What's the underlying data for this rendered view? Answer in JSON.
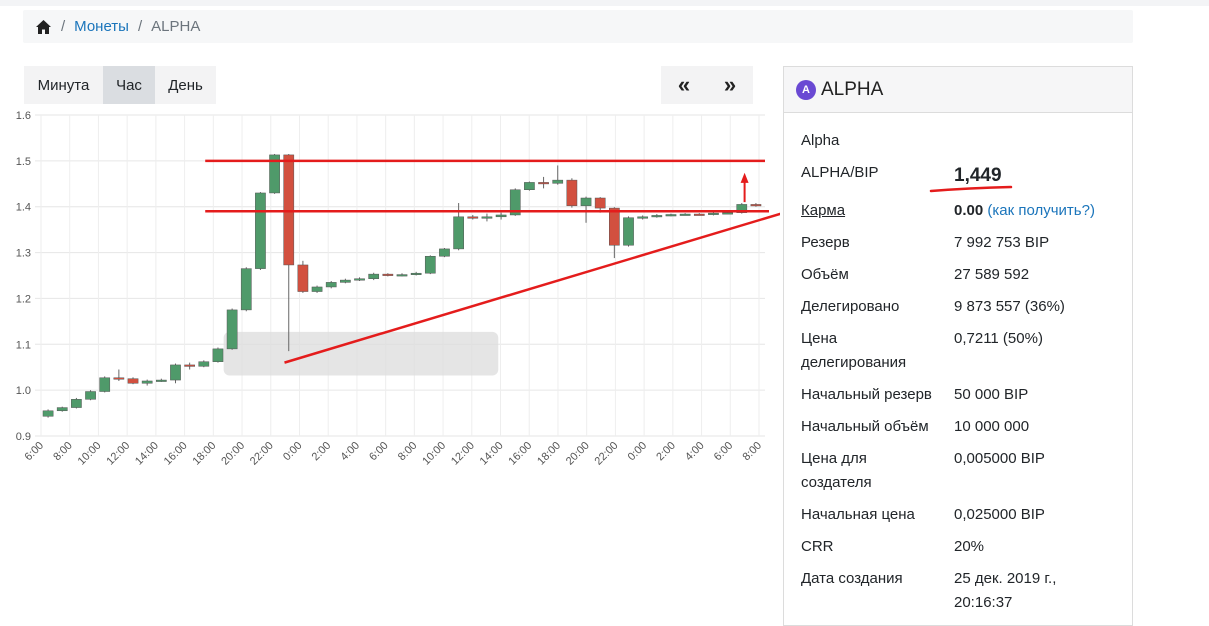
{
  "breadcrumb": {
    "home_icon": "home-icon",
    "coins_label": "Монеты",
    "current": "ALPHA"
  },
  "timeframe": {
    "items": [
      "Минута",
      "Час",
      "День"
    ],
    "active": "Час"
  },
  "pager": {
    "prev": "«",
    "next": "»"
  },
  "panel": {
    "ticker": "ALPHA",
    "logo_letter": "A",
    "name": "Alpha",
    "pair_label": "ALPHA/BIP",
    "pair_value": "1,449",
    "karma_label": "Карма",
    "karma_value": "0.00",
    "karma_link": "(как получить?)",
    "reserve_label": "Резерв",
    "reserve_value": "7 992 753 BIP",
    "volume_label": "Объём",
    "volume_value": "27 589 592",
    "delegated_label": "Делегировано",
    "delegated_value": "9 873 557 (36%)",
    "deleg_price_label_1": "Цена",
    "deleg_price_label_2": "делегирования",
    "deleg_price_value": "0,7211 (50%)",
    "init_reserve_label": "Начальный резерв",
    "init_reserve_value": "50 000 BIP",
    "init_volume_label": "Начальный объём",
    "init_volume_value": "10 000 000",
    "creator_price_label_1": "Цена для",
    "creator_price_label_2": "создателя",
    "creator_price_value": "0,005000 BIP",
    "init_price_label": "Начальная цена",
    "init_price_value": "0,025000 BIP",
    "crr_label": "CRR",
    "crr_value": "20%",
    "created_label": "Дата создания",
    "created_value_1": "25 дек. 2019 г.,",
    "created_value_2": "20:16:37"
  },
  "colors": {
    "up": "#4f9a6a",
    "down": "#d2503f",
    "annotation": "#e41c1c",
    "link": "#1b75bb"
  },
  "chart_data": {
    "type": "candlestick",
    "y_ticks": [
      "0.9",
      "1.0",
      "1.1",
      "1.2",
      "1.3",
      "1.4",
      "1.5",
      "1.6"
    ],
    "ylim": [
      0.9,
      1.6
    ],
    "x_ticks": [
      "6:00",
      "8:00",
      "10:00",
      "12:00",
      "14:00",
      "16:00",
      "18:00",
      "20:00",
      "22:00",
      "0:00",
      "2:00",
      "4:00",
      "6:00",
      "8:00",
      "10:00",
      "12:00",
      "14:00",
      "16:00",
      "18:00",
      "20:00",
      "22:00",
      "0:00",
      "2:00",
      "4:00",
      "6:00",
      "8:00"
    ],
    "candles": [
      [
        0.943,
        0.955,
        0.94,
        0.958
      ],
      [
        0.955,
        0.962,
        0.953,
        0.964
      ],
      [
        0.962,
        0.98,
        0.96,
        0.983
      ],
      [
        0.98,
        0.997,
        0.978,
        1.0
      ],
      [
        0.997,
        1.027,
        0.995,
        1.03
      ],
      [
        1.027,
        1.025,
        1.02,
        1.045
      ],
      [
        1.025,
        1.015,
        1.013,
        1.028
      ],
      [
        1.015,
        1.02,
        1.01,
        1.023
      ],
      [
        1.02,
        1.022,
        1.018,
        1.025
      ],
      [
        1.022,
        1.055,
        1.015,
        1.058
      ],
      [
        1.055,
        1.052,
        1.045,
        1.06
      ],
      [
        1.052,
        1.062,
        1.05,
        1.065
      ],
      [
        1.062,
        1.09,
        1.06,
        1.093
      ],
      [
        1.09,
        1.175,
        1.088,
        1.178
      ],
      [
        1.175,
        1.265,
        1.172,
        1.268
      ],
      [
        1.265,
        1.43,
        1.262,
        1.432
      ],
      [
        1.43,
        1.513,
        1.428,
        1.515
      ],
      [
        1.513,
        1.273,
        1.085,
        1.515
      ],
      [
        1.273,
        1.215,
        1.212,
        1.282
      ],
      [
        1.215,
        1.225,
        1.212,
        1.228
      ],
      [
        1.225,
        1.235,
        1.222,
        1.238
      ],
      [
        1.235,
        1.24,
        1.233,
        1.243
      ],
      [
        1.24,
        1.243,
        1.238,
        1.246
      ],
      [
        1.243,
        1.253,
        1.24,
        1.256
      ],
      [
        1.253,
        1.25,
        1.248,
        1.255
      ],
      [
        1.25,
        1.252,
        1.248,
        1.255
      ],
      [
        1.252,
        1.255,
        1.25,
        1.258
      ],
      [
        1.255,
        1.292,
        1.253,
        1.294
      ],
      [
        1.292,
        1.308,
        1.29,
        1.31
      ],
      [
        1.308,
        1.378,
        1.305,
        1.408
      ],
      [
        1.378,
        1.375,
        1.372,
        1.382
      ],
      [
        1.375,
        1.378,
        1.368,
        1.385
      ],
      [
        1.378,
        1.382,
        1.372,
        1.387
      ],
      [
        1.382,
        1.437,
        1.38,
        1.44
      ],
      [
        1.437,
        1.453,
        1.435,
        1.455
      ],
      [
        1.453,
        1.451,
        1.44,
        1.465
      ],
      [
        1.451,
        1.458,
        1.448,
        1.49
      ],
      [
        1.458,
        1.402,
        1.398,
        1.462
      ],
      [
        1.402,
        1.419,
        1.365,
        1.422
      ],
      [
        1.419,
        1.397,
        1.387,
        1.421
      ],
      [
        1.397,
        1.316,
        1.288,
        1.399
      ],
      [
        1.316,
        1.376,
        1.313,
        1.379
      ],
      [
        1.376,
        1.378,
        1.372,
        1.381
      ],
      [
        1.378,
        1.381,
        1.376,
        1.384
      ],
      [
        1.381,
        1.383,
        1.379,
        1.385
      ],
      [
        1.383,
        1.384,
        1.381,
        1.386
      ],
      [
        1.384,
        1.383,
        1.381,
        1.386
      ],
      [
        1.383,
        1.386,
        1.381,
        1.389
      ],
      [
        1.386,
        1.387,
        1.384,
        1.39
      ],
      [
        1.387,
        1.405,
        1.385,
        1.408
      ],
      [
        1.405,
        1.404,
        1.4,
        1.408
      ]
    ],
    "annotations": {
      "resistance": {
        "value": 1.5
      },
      "support": {
        "value": 1.39
      },
      "trend_from": {
        "index": 16.7,
        "value": 1.06
      },
      "trend_to": {
        "index": 50.5,
        "value": 1.385
      }
    }
  }
}
